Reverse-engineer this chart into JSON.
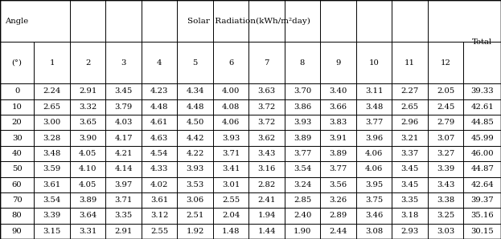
{
  "title": "Solar Radiation(kWh/m²day)",
  "months": [
    "1",
    "2",
    "3",
    "4",
    "5",
    "6",
    "7",
    "8",
    "9",
    "10",
    "11",
    "12"
  ],
  "angles": [
    0,
    10,
    20,
    30,
    40,
    50,
    60,
    70,
    80,
    90
  ],
  "data": [
    [
      2.24,
      2.91,
      3.45,
      4.23,
      4.34,
      4.0,
      3.63,
      3.7,
      3.4,
      3.11,
      2.27,
      2.05,
      39.33
    ],
    [
      2.65,
      3.32,
      3.79,
      4.48,
      4.48,
      4.08,
      3.72,
      3.86,
      3.66,
      3.48,
      2.65,
      2.45,
      42.61
    ],
    [
      3.0,
      3.65,
      4.03,
      4.61,
      4.5,
      4.06,
      3.72,
      3.93,
      3.83,
      3.77,
      2.96,
      2.79,
      44.85
    ],
    [
      3.28,
      3.9,
      4.17,
      4.63,
      4.42,
      3.93,
      3.62,
      3.89,
      3.91,
      3.96,
      3.21,
      3.07,
      45.99
    ],
    [
      3.48,
      4.05,
      4.21,
      4.54,
      4.22,
      3.71,
      3.43,
      3.77,
      3.89,
      4.06,
      3.37,
      3.27,
      46.0
    ],
    [
      3.59,
      4.1,
      4.14,
      4.33,
      3.93,
      3.41,
      3.16,
      3.54,
      3.77,
      4.06,
      3.45,
      3.39,
      44.87
    ],
    [
      3.61,
      4.05,
      3.97,
      4.02,
      3.53,
      3.01,
      2.82,
      3.24,
      3.56,
      3.95,
      3.45,
      3.43,
      42.64
    ],
    [
      3.54,
      3.89,
      3.71,
      3.61,
      3.06,
      2.55,
      2.41,
      2.85,
      3.26,
      3.75,
      3.35,
      3.38,
      39.37
    ],
    [
      3.39,
      3.64,
      3.35,
      3.12,
      2.51,
      2.04,
      1.94,
      2.4,
      2.89,
      3.46,
      3.18,
      3.25,
      35.16
    ],
    [
      3.15,
      3.31,
      2.91,
      2.55,
      1.92,
      1.48,
      1.44,
      1.9,
      2.44,
      3.08,
      2.93,
      3.03,
      30.15
    ]
  ],
  "bg_color": "#ffffff",
  "line_color": "#000000",
  "font_size": 7.2,
  "font_family": "serif"
}
